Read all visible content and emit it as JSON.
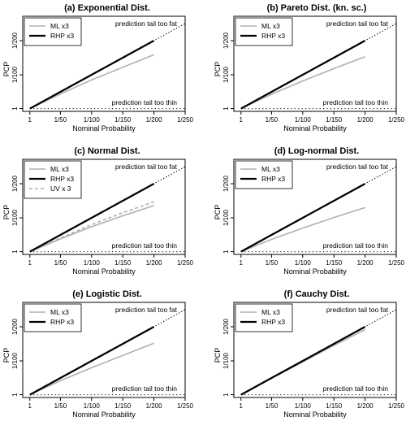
{
  "chart_data": [
    {
      "type": "line",
      "title": "(a) Exponential Dist.",
      "xlabel": "Nominal Probability",
      "ylabel": "PCP",
      "x_ticks": [
        "1",
        "1/50",
        "1/100",
        "1/150",
        "1/200",
        "1/250"
      ],
      "y_ticks": [
        "1",
        "1/100",
        "1/200"
      ],
      "xlim": [
        0,
        250
      ],
      "ylim": [
        0,
        250
      ],
      "annotations": [
        "prediction tail too fat",
        "prediction tail too thin"
      ],
      "legend_position": "top-left",
      "reference_line": {
        "style": "dotted",
        "x": [
          1,
          250
        ],
        "y": [
          1,
          250
        ]
      },
      "series": [
        {
          "name": "ML x3",
          "color": "#b0b0b0",
          "dash": "solid",
          "x": [
            1,
            50,
            100,
            150,
            200
          ],
          "y": [
            1,
            44,
            85,
            122,
            159
          ]
        },
        {
          "name": "RHP x3",
          "color": "#000000",
          "dash": "solid",
          "x": [
            1,
            50,
            100,
            150,
            200
          ],
          "y": [
            1,
            50,
            100,
            150,
            200
          ]
        }
      ]
    },
    {
      "type": "line",
      "title": "(b) Pareto Dist. (kn. sc.)",
      "xlabel": "Nominal Probability",
      "ylabel": "PCP",
      "x_ticks": [
        "1",
        "1/50",
        "1/100",
        "1/150",
        "1/200",
        "1/250"
      ],
      "y_ticks": [
        "1",
        "1/100",
        "1/200"
      ],
      "xlim": [
        0,
        250
      ],
      "ylim": [
        0,
        250
      ],
      "annotations": [
        "prediction tail too fat",
        "prediction tail too thin"
      ],
      "legend_position": "top-left",
      "reference_line": {
        "style": "dotted",
        "x": [
          1,
          250
        ],
        "y": [
          1,
          250
        ]
      },
      "series": [
        {
          "name": "ML x3",
          "color": "#b0b0b0",
          "dash": "solid",
          "x": [
            1,
            50,
            100,
            150,
            200
          ],
          "y": [
            1,
            43,
            82,
            118,
            153
          ]
        },
        {
          "name": "RHP x3",
          "color": "#000000",
          "dash": "solid",
          "x": [
            1,
            50,
            100,
            150,
            200
          ],
          "y": [
            1,
            50,
            100,
            150,
            200
          ]
        }
      ]
    },
    {
      "type": "line",
      "title": "(c) Normal Dist.",
      "xlabel": "Nominal Probability",
      "ylabel": "PCP",
      "x_ticks": [
        "1",
        "1/50",
        "1/100",
        "1/150",
        "1/200",
        "1/250"
      ],
      "y_ticks": [
        "1",
        "1/100",
        "1/200"
      ],
      "xlim": [
        0,
        250
      ],
      "ylim": [
        0,
        250
      ],
      "annotations": [
        "prediction tail too fat",
        "prediction tail too thin"
      ],
      "legend_position": "top-left",
      "reference_line": {
        "style": "dotted",
        "x": [
          1,
          250
        ],
        "y": [
          1,
          250
        ]
      },
      "series": [
        {
          "name": "ML x3",
          "color": "#b0b0b0",
          "dash": "solid",
          "x": [
            1,
            50,
            100,
            150,
            200
          ],
          "y": [
            1,
            38,
            74,
            106,
            136
          ]
        },
        {
          "name": "RHP x3",
          "color": "#000000",
          "dash": "solid",
          "x": [
            1,
            50,
            100,
            150,
            200
          ],
          "y": [
            1,
            50,
            100,
            150,
            200
          ]
        },
        {
          "name": "UV x 3",
          "color": "#b0b0b0",
          "dash": "dashed",
          "x": [
            1,
            50,
            100,
            150,
            200
          ],
          "y": [
            1,
            41,
            80,
            115,
            147
          ]
        }
      ]
    },
    {
      "type": "line",
      "title": "(d) Log-normal Dist.",
      "xlabel": "Nominal Probability",
      "ylabel": "PCP",
      "x_ticks": [
        "1",
        "1/50",
        "1/100",
        "1/150",
        "1/200",
        "1/250"
      ],
      "y_ticks": [
        "1",
        "1/100",
        "1/200"
      ],
      "xlim": [
        0,
        250
      ],
      "ylim": [
        0,
        250
      ],
      "annotations": [
        "prediction tail too fat",
        "prediction tail too thin"
      ],
      "legend_position": "top-left",
      "reference_line": {
        "style": "dotted",
        "x": [
          1,
          250
        ],
        "y": [
          1,
          250
        ]
      },
      "series": [
        {
          "name": "ML x3",
          "color": "#b0b0b0",
          "dash": "solid",
          "x": [
            1,
            50,
            100,
            150,
            200
          ],
          "y": [
            1,
            37,
            70,
            101,
            130
          ]
        },
        {
          "name": "RHP x3",
          "color": "#000000",
          "dash": "solid",
          "x": [
            1,
            50,
            100,
            150,
            200
          ],
          "y": [
            1,
            50,
            100,
            150,
            200
          ]
        }
      ]
    },
    {
      "type": "line",
      "title": "(e) Logistic Dist.",
      "xlabel": "Nominal Probability",
      "ylabel": "PCP",
      "x_ticks": [
        "1",
        "1/50",
        "1/100",
        "1/150",
        "1/200",
        "1/250"
      ],
      "y_ticks": [
        "1",
        "1/100",
        "1/200"
      ],
      "xlim": [
        0,
        250
      ],
      "ylim": [
        0,
        250
      ],
      "annotations": [
        "prediction tail too fat",
        "prediction tail too thin"
      ],
      "legend_position": "top-left",
      "reference_line": {
        "style": "dotted",
        "x": [
          1,
          250
        ],
        "y": [
          1,
          250
        ]
      },
      "series": [
        {
          "name": "ML x3",
          "color": "#b0b0b0",
          "dash": "solid",
          "x": [
            1,
            50,
            100,
            150,
            200
          ],
          "y": [
            1,
            42,
            80,
            116,
            152
          ]
        },
        {
          "name": "RHP x3",
          "color": "#000000",
          "dash": "solid",
          "x": [
            1,
            50,
            100,
            150,
            200
          ],
          "y": [
            1,
            50,
            100,
            150,
            200
          ]
        }
      ]
    },
    {
      "type": "line",
      "title": "(f) Cauchy Dist.",
      "xlabel": "Nominal Probability",
      "ylabel": "PCP",
      "x_ticks": [
        "1",
        "1/50",
        "1/100",
        "1/150",
        "1/200",
        "1/250"
      ],
      "y_ticks": [
        "1",
        "1/100",
        "1/200"
      ],
      "xlim": [
        0,
        250
      ],
      "ylim": [
        0,
        250
      ],
      "annotations": [
        "prediction tail too fat",
        "prediction tail too thin"
      ],
      "legend_position": "top-left",
      "reference_line": {
        "style": "dotted",
        "x": [
          1,
          250
        ],
        "y": [
          1,
          250
        ]
      },
      "series": [
        {
          "name": "ML x3",
          "color": "#b0b0b0",
          "dash": "solid",
          "x": [
            1,
            50,
            100,
            150,
            200
          ],
          "y": [
            1,
            49,
            97,
            145,
            192
          ]
        },
        {
          "name": "RHP x3",
          "color": "#000000",
          "dash": "solid",
          "x": [
            1,
            50,
            100,
            150,
            200
          ],
          "y": [
            1,
            50,
            100,
            150,
            200
          ]
        }
      ]
    }
  ]
}
